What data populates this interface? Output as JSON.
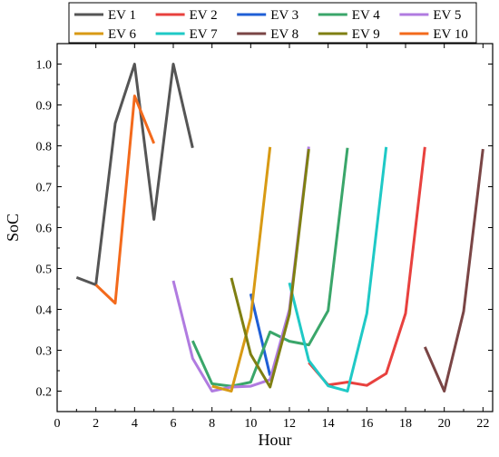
{
  "chart_data": {
    "type": "line",
    "xlabel": "Hour",
    "ylabel": "SoC",
    "xlim": [
      0,
      22.5
    ],
    "ylim": [
      0.15,
      1.05
    ],
    "xticks": [
      0,
      2,
      4,
      6,
      8,
      10,
      12,
      14,
      16,
      18,
      20,
      22
    ],
    "yticks": [
      0.2,
      0.3,
      0.4,
      0.5,
      0.6,
      0.7,
      0.8,
      0.9,
      1.0
    ],
    "ytick_labels": [
      "0.2",
      "0.3",
      "0.4",
      "0.5",
      "0.6",
      "0.7",
      "0.8",
      "0.9",
      "1.0"
    ],
    "grid": false,
    "legend_placement": "top-center",
    "series": [
      {
        "name": "EV 1",
        "color": "#555555",
        "x": [
          1,
          2,
          3,
          4,
          5,
          6,
          7
        ],
        "y": [
          0.478,
          0.46,
          0.855,
          1.0,
          0.62,
          1.0,
          0.795
        ]
      },
      {
        "name": "EV 2",
        "color": "#e8413e",
        "x": [
          13,
          14,
          15,
          16,
          17,
          18,
          19
        ],
        "y": [
          0.27,
          0.215,
          0.222,
          0.214,
          0.243,
          0.39,
          0.797
        ]
      },
      {
        "name": "EV 3",
        "color": "#1f5fd6",
        "x": [
          10,
          11
        ],
        "y": [
          0.438,
          0.238
        ]
      },
      {
        "name": "EV 4",
        "color": "#3aa66a",
        "x": [
          7,
          8,
          9,
          10,
          11,
          12,
          13,
          14,
          15
        ],
        "y": [
          0.323,
          0.218,
          0.212,
          0.222,
          0.345,
          0.322,
          0.313,
          0.397,
          0.795
        ]
      },
      {
        "name": "EV 5",
        "color": "#b07be0",
        "x": [
          6,
          7,
          8,
          9,
          10,
          11,
          12,
          13
        ],
        "y": [
          0.47,
          0.28,
          0.2,
          0.21,
          0.212,
          0.228,
          0.4,
          0.798
        ]
      },
      {
        "name": "EV 6",
        "color": "#d89a14",
        "x": [
          8,
          9,
          10,
          11
        ],
        "y": [
          0.212,
          0.2,
          0.38,
          0.797
        ]
      },
      {
        "name": "EV 7",
        "color": "#1fc9c6",
        "x": [
          12,
          13,
          14,
          15,
          16,
          17
        ],
        "y": [
          0.465,
          0.275,
          0.213,
          0.2,
          0.39,
          0.797
        ]
      },
      {
        "name": "EV 8",
        "color": "#7a4545",
        "x": [
          19,
          20,
          21,
          22
        ],
        "y": [
          0.308,
          0.2,
          0.395,
          0.792
        ]
      },
      {
        "name": "EV 9",
        "color": "#7f7f12",
        "x": [
          9,
          10,
          11,
          12,
          13
        ],
        "y": [
          0.477,
          0.29,
          0.21,
          0.388,
          0.792
        ]
      },
      {
        "name": "EV 10",
        "color": "#f36a1c",
        "x": [
          2,
          3,
          4,
          5
        ],
        "y": [
          0.46,
          0.415,
          0.922,
          0.806
        ]
      }
    ]
  }
}
